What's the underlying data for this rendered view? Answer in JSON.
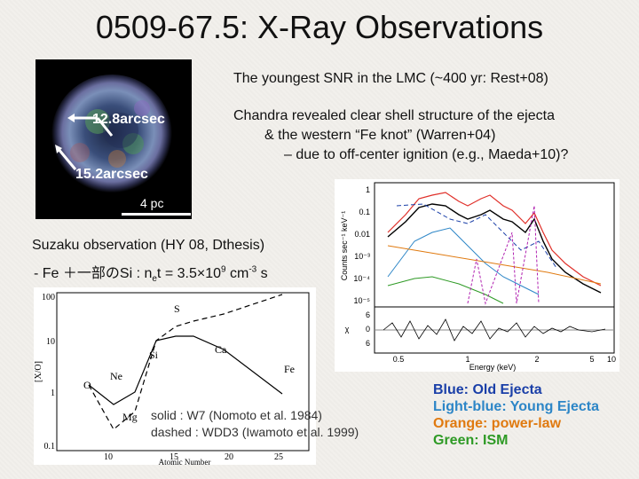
{
  "title": "0509-67.5: X-Ray Observations",
  "image": {
    "arc_a": "12.8arcsec",
    "arc_b": "15.2arcsec",
    "scale": "4 pc"
  },
  "text": {
    "line1": "The youngest SNR in the LMC (~400 yr: Rest+08)",
    "line2": "Chandra revealed clear shell structure of the ejecta",
    "line3": "& the western “Fe knot” (Warren+04)",
    "line4": "– due to off-center ignition (e.g., Maeda+10)?",
    "suzaku": "Suzaku observation (HY 08, Dthesis)",
    "ratio_prefix": "- Fe ＋一部のSi : n",
    "ratio_sub": "e",
    "ratio_mid": "t = 3.5×10",
    "ratio_sup1": "9",
    "ratio_unit": " cm",
    "ratio_sup2": "-3",
    "ratio_end": " s"
  },
  "spectrum": {
    "ylabel": "Counts sec⁻¹ keV⁻¹",
    "ylabel2": "χ",
    "xlabel": "Energy (keV)",
    "yticks": [
      "10⁻⁵",
      "10⁻⁴",
      "10⁻³",
      "0.01",
      "0.1",
      "1"
    ],
    "chi_ticks": [
      "6",
      "0",
      "6"
    ],
    "xticks": [
      "0.5",
      "1",
      "2",
      "5",
      "10"
    ]
  },
  "abundance": {
    "ylabel": "[X/O]",
    "xlabel": "Atomic Number",
    "yticks": [
      "100",
      "10",
      "1",
      "0.1"
    ],
    "xticks": [
      "10",
      "15",
      "20",
      "25"
    ],
    "elements": [
      "O",
      "Ne",
      "Mg",
      "Si",
      "S",
      "Ca",
      "Fe"
    ],
    "legend_solid": "solid : W7 (Nomoto et al. 1984)",
    "legend_dashed": "dashed : WDD3 (Iwamoto et al. 1999)"
  },
  "legend": {
    "old": "Blue: Old Ejecta",
    "young": "Light-blue: Young Ejecta",
    "pl": "Orange: power-law",
    "ism": "Green: ISM"
  },
  "colors": {
    "old": "#1a3fa8",
    "young": "#2d86c7",
    "pl": "#e07a10",
    "ism": "#2e9a25"
  }
}
